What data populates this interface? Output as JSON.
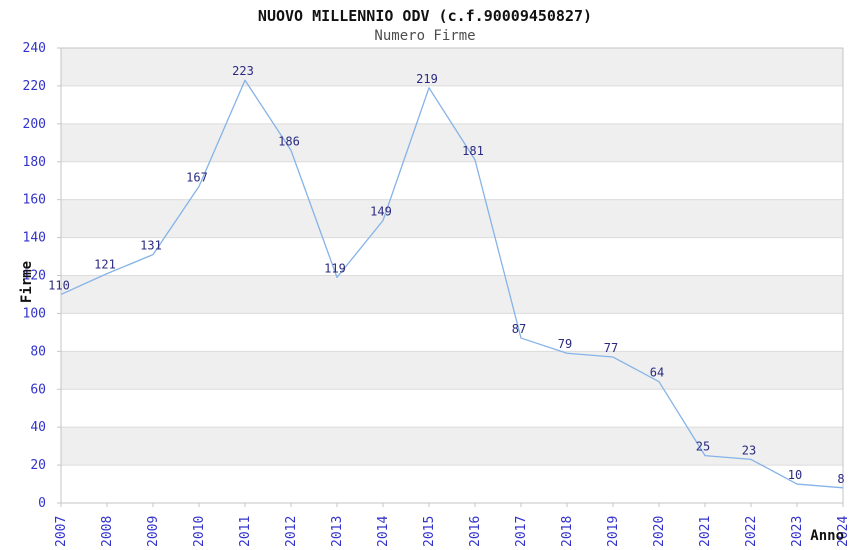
{
  "chart_data": {
    "type": "line",
    "title": "NUOVO MILLENNIO ODV (c.f.90009450827)",
    "subtitle": "Numero Firme",
    "xlabel": "Anno",
    "ylabel": "Firme",
    "x": [
      "2007",
      "2008",
      "2009",
      "2010",
      "2011",
      "2012",
      "2013",
      "2014",
      "2015",
      "2016",
      "2017",
      "2018",
      "2019",
      "2020",
      "2021",
      "2022",
      "2023",
      "2024"
    ],
    "values": [
      110,
      121,
      131,
      167,
      223,
      186,
      119,
      149,
      219,
      181,
      87,
      79,
      77,
      64,
      25,
      23,
      10,
      8
    ],
    "ylim": [
      0,
      240
    ],
    "ytick_step": 20,
    "grid": true,
    "legend": "none",
    "data_labels_shown": true,
    "colors": {
      "line": "#85b3e8",
      "band_gray": "#efefef",
      "band_white": "#ffffff",
      "grid_line": "#dcdcdc",
      "plot_border": "#c6c6c6",
      "tick_label": "#3333cc",
      "data_label": "#2b2a80",
      "title": "#111111",
      "subtitle": "#4d4d4d",
      "axis_title": "#111111"
    }
  }
}
